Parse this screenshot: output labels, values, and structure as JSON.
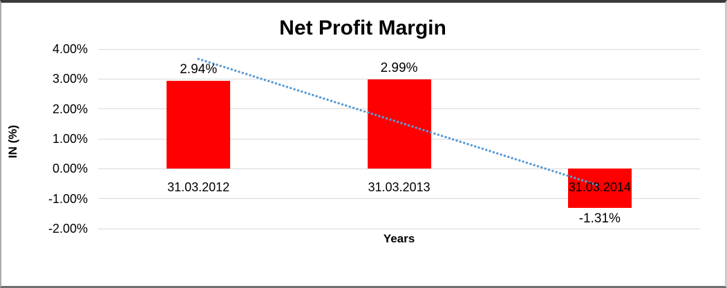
{
  "chart_data": {
    "type": "bar",
    "title": "Net Profit Margin",
    "xlabel": "Years",
    "ylabel": "IN (%)",
    "categories": [
      "31.03.2012",
      "31.03.2013",
      "31.03.2014"
    ],
    "values": [
      2.94,
      2.99,
      -1.31
    ],
    "data_labels": [
      "2.94%",
      "2.99%",
      "-1.31%"
    ],
    "yticks": [
      {
        "value": 4,
        "label": "4.00%"
      },
      {
        "value": 3,
        "label": "3.00%"
      },
      {
        "value": 2,
        "label": "2.00%"
      },
      {
        "value": 1,
        "label": "1.00%"
      },
      {
        "value": 0,
        "label": "0.00%"
      },
      {
        "value": -1,
        "label": "-1.00%"
      },
      {
        "value": -2,
        "label": "-2.00%"
      }
    ],
    "ylim": [
      -2,
      4
    ],
    "grid": true,
    "legend": "none",
    "colors": {
      "bar": "#FF0000",
      "trendline": "#5B9BD5",
      "gridline": "#D9D9D9",
      "text": "#000000"
    },
    "trendline": {
      "type": "linear",
      "style": "dotted",
      "start_value": 3.67,
      "end_value": -0.57
    }
  }
}
